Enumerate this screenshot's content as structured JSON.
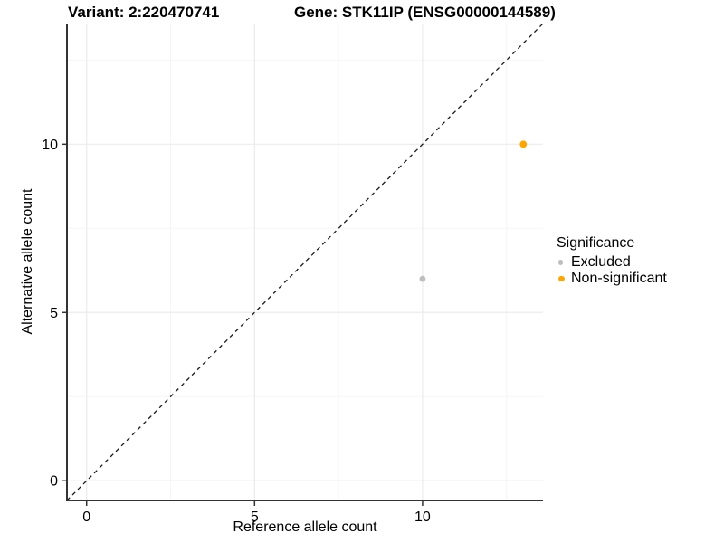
{
  "titles": {
    "variant": "Variant: 2:220470741",
    "gene": "Gene: STK11IP (ENSG00000144589)"
  },
  "chart_data": {
    "type": "scatter",
    "xlabel": "Reference allele count",
    "ylabel": "Alternative allele count",
    "xlim": [
      -0.585,
      13.585
    ],
    "ylim": [
      -0.585,
      13.585
    ],
    "x_major_ticks": [
      0,
      5,
      10
    ],
    "y_major_ticks": [
      0,
      5,
      10
    ],
    "x_minor_ticks": [
      2.5,
      7.5,
      12.5
    ],
    "y_minor_ticks": [
      2.5,
      7.5,
      12.5
    ],
    "grid": "on",
    "identity_line": {
      "style": "dashed",
      "slope": 1,
      "intercept": 0,
      "color": "#1a1a1a"
    },
    "points": [
      {
        "x": 10,
        "y": 6,
        "significance": "Excluded",
        "color": "#bebebe",
        "r": 3.4
      },
      {
        "x": 13,
        "y": 10,
        "significance": "Non-significant",
        "color": "#ffa500",
        "r": 3.9
      }
    ],
    "legend": {
      "title": "Significance",
      "position": "right",
      "entries": [
        {
          "label": "Excluded",
          "color": "#bebebe",
          "r": 2.6
        },
        {
          "label": "Non-significant",
          "color": "#ffa500",
          "r": 3.4
        }
      ]
    },
    "colors": {
      "background": "#ffffff",
      "grid_major": "#ebebeb",
      "grid_minor": "#f5f5f5",
      "axis_line": "#333333",
      "text": "#000000"
    }
  }
}
